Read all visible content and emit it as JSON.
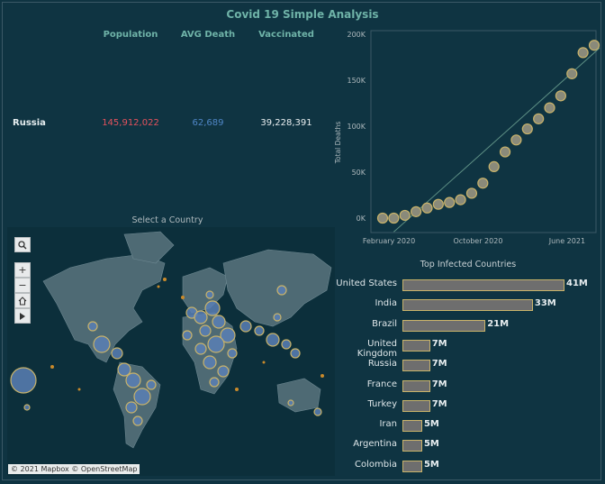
{
  "dashboard": {
    "title": "Covid 19 Simple Analysis"
  },
  "kpi": {
    "headers": [
      "Population",
      "AVG Death",
      "Vaccinated"
    ],
    "country": "Russia",
    "population": "145,912,022",
    "avg_death": "62,689",
    "vaccinated": "39,228,391",
    "colors": {
      "population": "#e4525d",
      "avg_death": "#4f86c6",
      "vaccinated": "#e8eef0"
    }
  },
  "map": {
    "title": "Select a Country",
    "tools": {
      "search_icon": "search-icon",
      "zoom_in": "+",
      "zoom_out": "−",
      "home_icon": "home-icon",
      "pan_icon": "play-icon"
    },
    "attribution": "© 2021 Mapbox  © OpenStreetMap"
  },
  "chart_data": [
    {
      "type": "scatter",
      "ylabel": "Total Deaths",
      "x_ticks": [
        "February 2020",
        "October 2020",
        "June 2021"
      ],
      "y_ticks": [
        "0K",
        "50K",
        "100K",
        "150K",
        "200K"
      ],
      "ylim": [
        0,
        200000
      ],
      "x": [
        "2020-02",
        "2020-03",
        "2020-04",
        "2020-05",
        "2020-06",
        "2020-07",
        "2020-08",
        "2020-09",
        "2020-10",
        "2020-11",
        "2020-12",
        "2021-01",
        "2021-02",
        "2021-03",
        "2021-04",
        "2021-05",
        "2021-06",
        "2021-07",
        "2021-08",
        "2021-09"
      ],
      "y": [
        0,
        0,
        3000,
        7000,
        11000,
        15000,
        17000,
        20000,
        27000,
        38000,
        56000,
        72000,
        85000,
        97000,
        108000,
        120000,
        133000,
        157000,
        180000,
        188000
      ],
      "trendline": true,
      "point_color": "#8a8a7a",
      "point_stroke": "#c9b36a"
    },
    {
      "type": "bar",
      "title": "Top Infected Countries",
      "categories": [
        "United States",
        "India",
        "Brazil",
        "United Kingdom",
        "Russia",
        "France",
        "Turkey",
        "Iran",
        "Argentina",
        "Colombia"
      ],
      "values": [
        41,
        33,
        21,
        7,
        7,
        7,
        7,
        5,
        5,
        5
      ],
      "labels": [
        "41M",
        "33M",
        "21M",
        "7M",
        "7M",
        "7M",
        "7M",
        "5M",
        "5M",
        "5M"
      ],
      "bar_color": "#6e6e6e",
      "bar_stroke": "#c9b36a"
    }
  ]
}
